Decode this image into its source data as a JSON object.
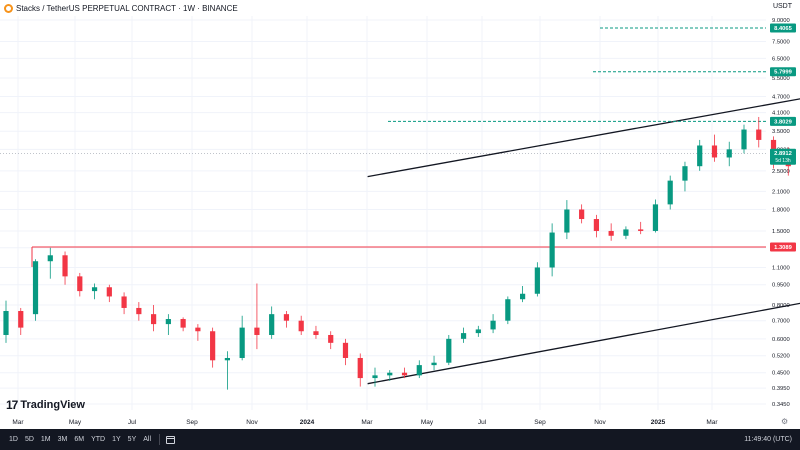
{
  "header": {
    "title": "Stacks / TetherUS PERPETUAL CONTRACT · 1W · BINANCE",
    "currency": "USDT"
  },
  "chart_data": {
    "type": "candlestick",
    "title": "Stacks / TetherUS PERPETUAL CONTRACT · 1W · BINANCE",
    "ylabel": "USDT",
    "yscale": "log",
    "ylim": [
      0.32,
      9.2
    ],
    "y_ticks": [
      "9.0000",
      "7.5000",
      "6.5000",
      "5.5000",
      "4.7000",
      "4.1000",
      "3.5000",
      "3.0000",
      "2.5000",
      "2.1000",
      "1.8000",
      "1.5000",
      "1.3000",
      "1.1000",
      "0.9500",
      "0.8000",
      "0.7000",
      "0.6000",
      "0.5200",
      "0.4500",
      "0.3950",
      "0.3450"
    ],
    "x_ticks": [
      "Mar",
      "May",
      "Jul",
      "Sep",
      "Nov",
      "2024",
      "Mar",
      "May",
      "Jul",
      "Sep",
      "Nov",
      "2025",
      "Mar"
    ],
    "candles": [
      {
        "o": 0.62,
        "h": 0.83,
        "l": 0.58,
        "c": 0.76
      },
      {
        "o": 0.76,
        "h": 0.78,
        "l": 0.62,
        "c": 0.66
      },
      {
        "o": 0.74,
        "h": 1.18,
        "l": 0.7,
        "c": 1.16
      },
      {
        "o": 1.16,
        "h": 1.3,
        "l": 1.0,
        "c": 1.22
      },
      {
        "o": 1.22,
        "h": 1.26,
        "l": 0.95,
        "c": 1.02
      },
      {
        "o": 1.02,
        "h": 1.05,
        "l": 0.86,
        "c": 0.9
      },
      {
        "o": 0.9,
        "h": 0.96,
        "l": 0.84,
        "c": 0.93
      },
      {
        "o": 0.93,
        "h": 0.95,
        "l": 0.82,
        "c": 0.86
      },
      {
        "o": 0.86,
        "h": 0.89,
        "l": 0.74,
        "c": 0.78
      },
      {
        "o": 0.78,
        "h": 0.82,
        "l": 0.7,
        "c": 0.74
      },
      {
        "o": 0.74,
        "h": 0.8,
        "l": 0.64,
        "c": 0.68
      },
      {
        "o": 0.68,
        "h": 0.74,
        "l": 0.62,
        "c": 0.71
      },
      {
        "o": 0.71,
        "h": 0.72,
        "l": 0.64,
        "c": 0.66
      },
      {
        "o": 0.66,
        "h": 0.68,
        "l": 0.59,
        "c": 0.64
      },
      {
        "o": 0.64,
        "h": 0.66,
        "l": 0.47,
        "c": 0.5
      },
      {
        "o": 0.5,
        "h": 0.54,
        "l": 0.39,
        "c": 0.51
      },
      {
        "o": 0.51,
        "h": 0.73,
        "l": 0.5,
        "c": 0.66
      },
      {
        "o": 0.66,
        "h": 0.96,
        "l": 0.55,
        "c": 0.62
      },
      {
        "o": 0.62,
        "h": 0.79,
        "l": 0.6,
        "c": 0.74
      },
      {
        "o": 0.74,
        "h": 0.76,
        "l": 0.66,
        "c": 0.7
      },
      {
        "o": 0.7,
        "h": 0.73,
        "l": 0.62,
        "c": 0.64
      },
      {
        "o": 0.64,
        "h": 0.67,
        "l": 0.6,
        "c": 0.62
      },
      {
        "o": 0.62,
        "h": 0.64,
        "l": 0.55,
        "c": 0.58
      },
      {
        "o": 0.58,
        "h": 0.6,
        "l": 0.48,
        "c": 0.51
      },
      {
        "o": 0.51,
        "h": 0.53,
        "l": 0.4,
        "c": 0.43
      },
      {
        "o": 0.43,
        "h": 0.47,
        "l": 0.4,
        "c": 0.44
      },
      {
        "o": 0.44,
        "h": 0.46,
        "l": 0.42,
        "c": 0.45
      },
      {
        "o": 0.45,
        "h": 0.47,
        "l": 0.43,
        "c": 0.44
      },
      {
        "o": 0.44,
        "h": 0.5,
        "l": 0.43,
        "c": 0.48
      },
      {
        "o": 0.48,
        "h": 0.52,
        "l": 0.46,
        "c": 0.49
      },
      {
        "o": 0.49,
        "h": 0.62,
        "l": 0.48,
        "c": 0.6
      },
      {
        "o": 0.6,
        "h": 0.66,
        "l": 0.58,
        "c": 0.63
      },
      {
        "o": 0.63,
        "h": 0.67,
        "l": 0.61,
        "c": 0.65
      },
      {
        "o": 0.65,
        "h": 0.74,
        "l": 0.63,
        "c": 0.7
      },
      {
        "o": 0.7,
        "h": 0.86,
        "l": 0.68,
        "c": 0.84
      },
      {
        "o": 0.84,
        "h": 0.94,
        "l": 0.82,
        "c": 0.88
      },
      {
        "o": 0.88,
        "h": 1.15,
        "l": 0.86,
        "c": 1.1
      },
      {
        "o": 1.1,
        "h": 1.6,
        "l": 1.02,
        "c": 1.48
      },
      {
        "o": 1.48,
        "h": 1.95,
        "l": 1.4,
        "c": 1.8
      },
      {
        "o": 1.8,
        "h": 1.88,
        "l": 1.6,
        "c": 1.66
      },
      {
        "o": 1.66,
        "h": 1.72,
        "l": 1.42,
        "c": 1.5
      },
      {
        "o": 1.5,
        "h": 1.6,
        "l": 1.38,
        "c": 1.44
      },
      {
        "o": 1.44,
        "h": 1.56,
        "l": 1.4,
        "c": 1.52
      },
      {
        "o": 1.52,
        "h": 1.62,
        "l": 1.46,
        "c": 1.5
      },
      {
        "o": 1.5,
        "h": 1.96,
        "l": 1.48,
        "c": 1.88
      },
      {
        "o": 1.88,
        "h": 2.4,
        "l": 1.8,
        "c": 2.3
      },
      {
        "o": 2.3,
        "h": 2.7,
        "l": 2.1,
        "c": 2.6
      },
      {
        "o": 2.6,
        "h": 3.25,
        "l": 2.5,
        "c": 3.1
      },
      {
        "o": 3.1,
        "h": 3.4,
        "l": 2.7,
        "c": 2.8
      },
      {
        "o": 2.8,
        "h": 3.2,
        "l": 2.6,
        "c": 3.0
      },
      {
        "o": 3.0,
        "h": 3.7,
        "l": 2.9,
        "c": 3.55
      },
      {
        "o": 3.55,
        "h": 3.95,
        "l": 3.05,
        "c": 3.25
      },
      {
        "o": 3.25,
        "h": 3.35,
        "l": 2.55,
        "c": 2.65
      },
      {
        "o": 2.65,
        "h": 3.05,
        "l": 2.4,
        "c": 2.6
      },
      {
        "o": 2.6,
        "h": 2.75,
        "l": 2.2,
        "c": 2.3
      },
      {
        "o": 2.3,
        "h": 2.45,
        "l": 2.05,
        "c": 2.15
      },
      {
        "o": 2.15,
        "h": 2.25,
        "l": 1.95,
        "c": 2.05
      },
      {
        "o": 2.05,
        "h": 2.15,
        "l": 1.95,
        "c": 2.0
      },
      {
        "o": 2.0,
        "h": 2.05,
        "l": 1.85,
        "c": 1.95
      },
      {
        "o": 1.95,
        "h": 2.35,
        "l": 1.9,
        "c": 2.25
      },
      {
        "o": 2.25,
        "h": 2.35,
        "l": 1.85,
        "c": 1.95
      },
      {
        "o": 1.95,
        "h": 2.0,
        "l": 1.65,
        "c": 1.72
      },
      {
        "o": 1.72,
        "h": 1.78,
        "l": 1.28,
        "c": 1.33
      },
      {
        "o": 1.33,
        "h": 1.8,
        "l": 1.28,
        "c": 1.72
      },
      {
        "o": 1.72,
        "h": 2.05,
        "l": 1.65,
        "c": 1.95
      },
      {
        "o": 1.95,
        "h": 2.0,
        "l": 1.25,
        "c": 1.32
      },
      {
        "o": 1.32,
        "h": 1.45,
        "l": 1.08,
        "c": 1.38
      },
      {
        "o": 1.38,
        "h": 1.62,
        "l": 1.3,
        "c": 1.4
      },
      {
        "o": 1.4,
        "h": 1.72,
        "l": 1.35,
        "c": 1.65
      },
      {
        "o": 1.65,
        "h": 1.9,
        "l": 1.6,
        "c": 1.85
      },
      {
        "o": 1.85,
        "h": 1.92,
        "l": 1.5,
        "c": 1.55
      },
      {
        "o": 1.55,
        "h": 1.62,
        "l": 1.4,
        "c": 1.45
      },
      {
        "o": 1.45,
        "h": 1.62,
        "l": 1.4,
        "c": 1.58
      },
      {
        "o": 1.58,
        "h": 1.85,
        "l": 1.55,
        "c": 1.82
      },
      {
        "o": 1.82,
        "h": 2.05,
        "l": 1.75,
        "c": 1.98
      },
      {
        "o": 1.98,
        "h": 2.05,
        "l": 1.72,
        "c": 1.78
      },
      {
        "o": 1.78,
        "h": 1.88,
        "l": 1.72,
        "c": 1.82
      },
      {
        "o": 1.82,
        "h": 1.95,
        "l": 1.7,
        "c": 1.75
      },
      {
        "o": 1.75,
        "h": 1.92,
        "l": 1.68,
        "c": 1.88
      },
      {
        "o": 1.88,
        "h": 1.92,
        "l": 1.4,
        "c": 1.45
      },
      {
        "o": 1.45,
        "h": 1.78,
        "l": 1.42,
        "c": 1.72
      },
      {
        "o": 1.72,
        "h": 1.85,
        "l": 1.68,
        "c": 1.8
      },
      {
        "o": 1.8,
        "h": 2.05,
        "l": 1.75,
        "c": 2.0
      },
      {
        "o": 2.0,
        "h": 2.35,
        "l": 1.95,
        "c": 2.2
      },
      {
        "o": 2.2,
        "h": 2.6,
        "l": 2.15,
        "c": 2.5
      },
      {
        "o": 2.5,
        "h": 2.95,
        "l": 2.45,
        "c": 2.89
      }
    ],
    "levels": [
      {
        "price": 8.4065,
        "label": "8.4065",
        "color": "#089981",
        "style": "dashed"
      },
      {
        "price": 5.7999,
        "label": "5.7999",
        "color": "#089981",
        "style": "dashed"
      },
      {
        "price": 3.8029,
        "label": "3.8029",
        "color": "#089981",
        "style": "dashed"
      },
      {
        "price": 1.3089,
        "label": "1.3089",
        "color": "#f23645",
        "style": "solid"
      }
    ],
    "current_price": {
      "value": 2.8912,
      "label": "2.8912",
      "countdown": "5d 13h",
      "color": "#089981"
    },
    "channel_upper": [
      {
        "i": 49,
        "p": 2.38
      },
      {
        "i": 167,
        "p": 9.0
      }
    ],
    "channel_lower": [
      {
        "i": 49,
        "p": 0.41
      },
      {
        "i": 167,
        "p": 1.62
      }
    ],
    "triangle_line": [
      {
        "i": 111,
        "p": 2.5
      },
      {
        "i": 161,
        "p": 1.78
      }
    ],
    "arrow": [
      {
        "i": 157,
        "p": 2.05
      },
      {
        "i": 165,
        "p": 8.45
      }
    ],
    "colors": {
      "up": "#089981",
      "down": "#f23645",
      "channel": "#131722",
      "triangle": "#f23645",
      "arrow": "#5b9cf6",
      "grid": "#f0f3fa"
    }
  },
  "watermark": "TradingView",
  "bottom_bar": {
    "timeframes": [
      "1D",
      "5D",
      "1M",
      "3M",
      "6M",
      "YTD",
      "1Y",
      "5Y",
      "All"
    ],
    "clock": "11:49:40 (UTC)"
  }
}
